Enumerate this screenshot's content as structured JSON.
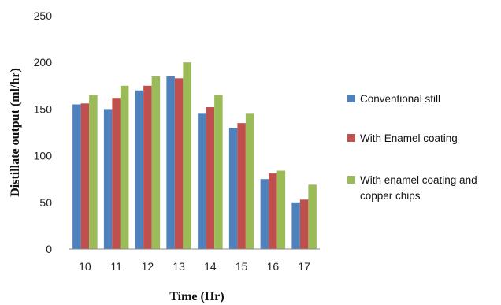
{
  "chart_data": {
    "type": "bar",
    "xlabel": "Time (Hr)",
    "ylabel": "Distillate output (ml/hr)",
    "categories": [
      "10",
      "11",
      "12",
      "13",
      "14",
      "15",
      "16",
      "17"
    ],
    "ylim": [
      0,
      250
    ],
    "yticks": [
      "0",
      "50",
      "100",
      "150",
      "200",
      "250"
    ],
    "grid": false,
    "legend_position": "right",
    "series": [
      {
        "name": "Conventional still",
        "color": "#4f81bd",
        "values": [
          155,
          150,
          170,
          185,
          145,
          130,
          75,
          50
        ]
      },
      {
        "name": "With Enamel  coating",
        "color": "#c0504d",
        "values": [
          156,
          162,
          175,
          183,
          152,
          135,
          81,
          53
        ]
      },
      {
        "name_lines": [
          "With enamel coating and",
          "copper chips"
        ],
        "color": "#9bbb59",
        "values": [
          165,
          175,
          185,
          200,
          165,
          145,
          84,
          69
        ]
      }
    ]
  }
}
